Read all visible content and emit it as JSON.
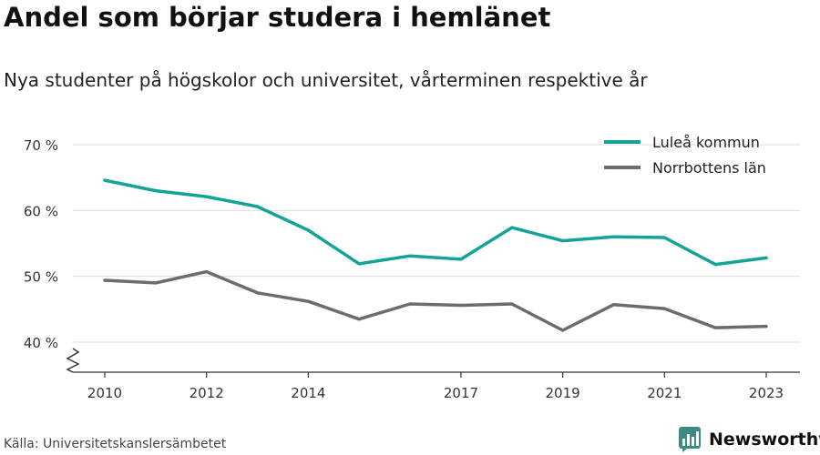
{
  "title": "Andel som börjar studera i hemlänet",
  "subtitle": "Nya studenter på högskolor och universitet, vårterminen respektive år",
  "source": "Källa: Universitetskanslersämbetet",
  "brand": {
    "name": "Newsworthy",
    "icon": "newsworthy-logo-icon",
    "color": "#3c8a85"
  },
  "colors": {
    "luleå": "#13a397",
    "norrbotten": "#6b6b72",
    "grid": "#dddddd",
    "axis": "#333333"
  },
  "chart_data": {
    "type": "line",
    "x": [
      2010,
      2011,
      2012,
      2013,
      2014,
      2015,
      2016,
      2017,
      2018,
      2019,
      2020,
      2021,
      2022,
      2023
    ],
    "x_ticks": [
      "2010",
      "2012",
      "2014",
      "2017",
      "2019",
      "2021",
      "2023"
    ],
    "y_ticks": [
      "40 %",
      "50 %",
      "60 %",
      "70 %"
    ],
    "y_tick_values": [
      40,
      50,
      60,
      70
    ],
    "ylim": [
      35.5,
      70
    ],
    "y_axis_break": true,
    "grid": "horizontal",
    "legend_position": "top-right",
    "series": [
      {
        "name": "Luleå kommun",
        "color": "#13a397",
        "values": [
          64.6,
          63.0,
          62.1,
          60.6,
          57.0,
          51.9,
          53.1,
          52.6,
          57.4,
          55.4,
          56.0,
          55.9,
          51.8,
          52.8
        ]
      },
      {
        "name": "Norrbottens län",
        "color": "#6b6b72",
        "values": [
          49.4,
          49.0,
          50.7,
          47.5,
          46.2,
          43.5,
          45.8,
          45.6,
          45.8,
          41.8,
          45.7,
          45.1,
          42.2,
          42.4
        ]
      }
    ]
  }
}
